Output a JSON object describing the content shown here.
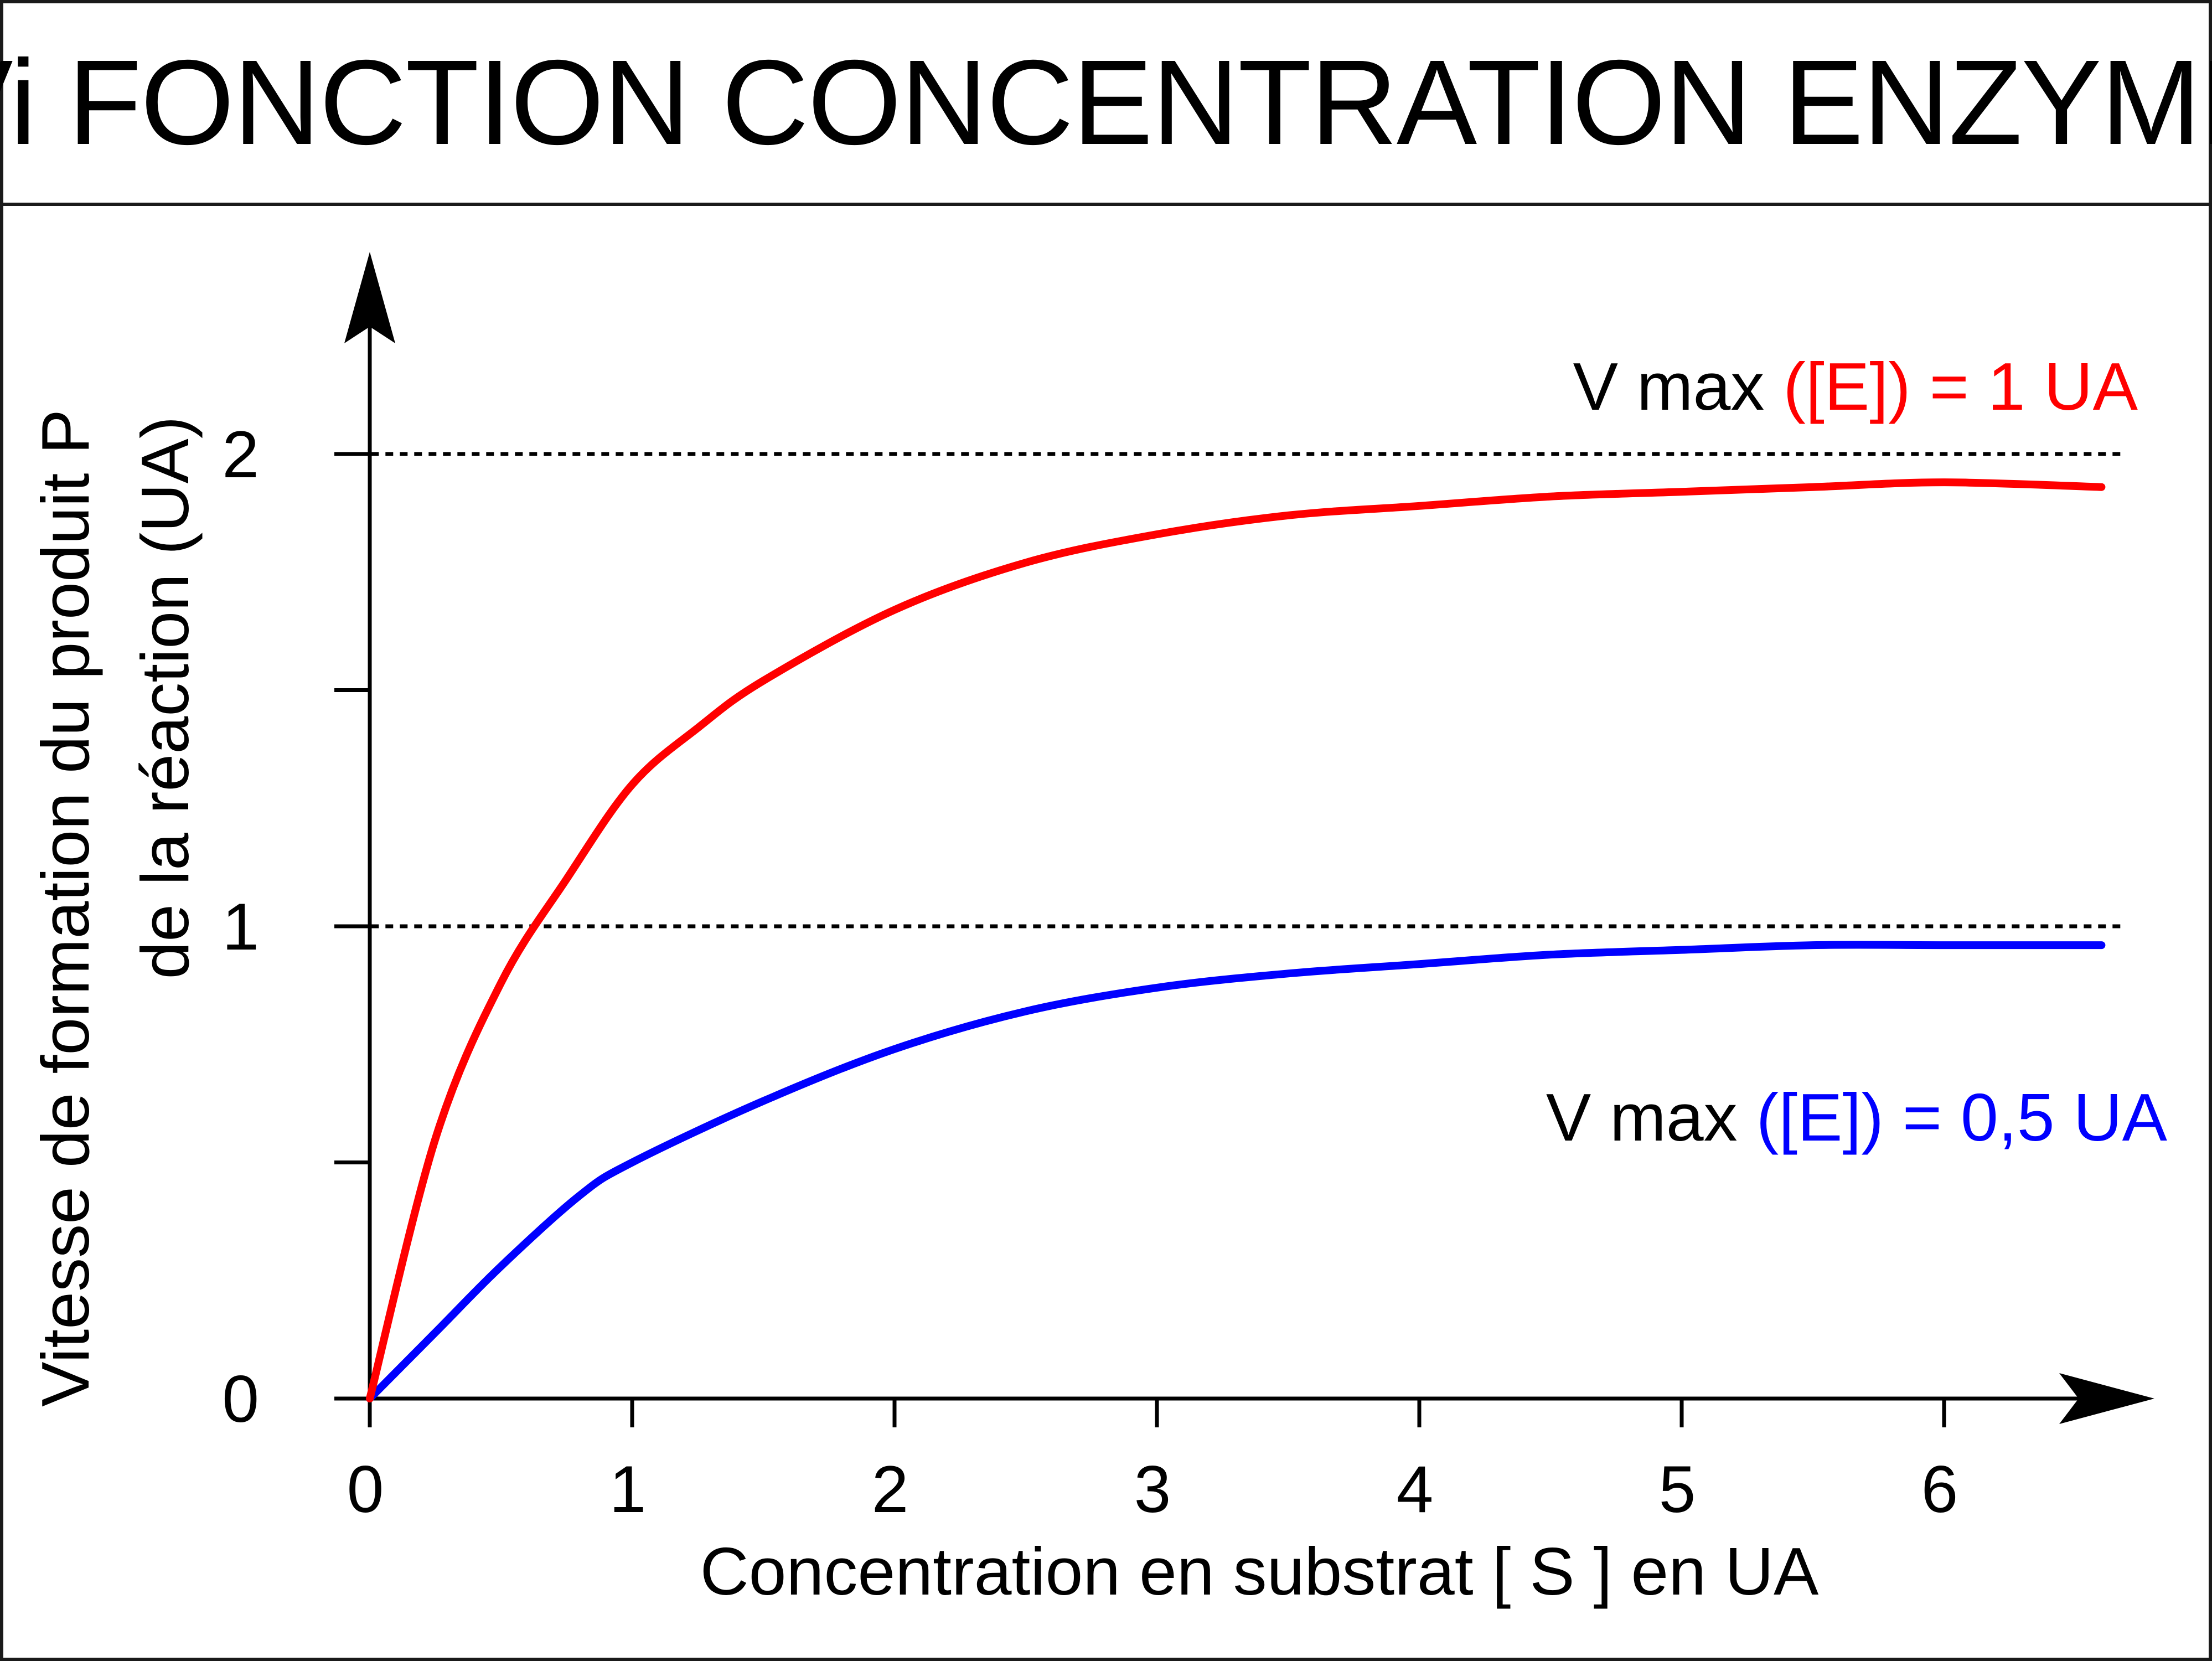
{
  "title": "Vi FONCTION CONCENTRATION ENZYME",
  "chart_data": {
    "type": "line",
    "title": "Vi FONCTION CONCENTRATION ENZYME",
    "xlabel": "Concentration en substrat [ S ] en UA",
    "ylabel_line1": "Vitesse de formation du produit P",
    "ylabel_line2": "de la réaction (UA)",
    "xlim": [
      0,
      6.8
    ],
    "ylim": [
      0,
      2.5
    ],
    "x_ticks": [
      "0",
      "1",
      "2",
      "3",
      "4",
      "5",
      "6"
    ],
    "y_ticks": [
      "0",
      "1",
      "2"
    ],
    "y_minor_ticks": [
      0.5,
      1.5
    ],
    "grid": false,
    "reference_lines": [
      {
        "y": 2,
        "style": "dotted"
      },
      {
        "y": 1,
        "style": "dotted"
      }
    ],
    "series": [
      {
        "color": "#ff0000",
        "x": [
          0,
          0.25,
          0.5,
          0.75,
          1,
          1.25,
          1.5,
          2,
          2.5,
          3,
          3.5,
          4,
          4.5,
          5,
          5.5,
          6,
          6.6
        ],
        "y": [
          0,
          0.55,
          0.88,
          1.1,
          1.3,
          1.42,
          1.52,
          1.67,
          1.77,
          1.83,
          1.87,
          1.89,
          1.91,
          1.92,
          1.93,
          1.94,
          1.93
        ]
      },
      {
        "color": "#0000ff",
        "x": [
          0,
          0.25,
          0.5,
          0.8,
          1,
          1.5,
          2,
          2.5,
          3,
          3.5,
          4,
          4.5,
          5,
          5.5,
          6,
          6.6
        ],
        "y": [
          0,
          0.14,
          0.28,
          0.43,
          0.5,
          0.63,
          0.74,
          0.82,
          0.87,
          0.9,
          0.92,
          0.94,
          0.95,
          0.96,
          0.96,
          0.96
        ]
      }
    ],
    "annotations": [
      {
        "prefix": "V max ",
        "value": "([E]) = 1 UA",
        "color": "#ff0000"
      },
      {
        "prefix": "V max ",
        "value": "([E]) = 0,5 UA",
        "color": "#0000ff"
      }
    ]
  }
}
